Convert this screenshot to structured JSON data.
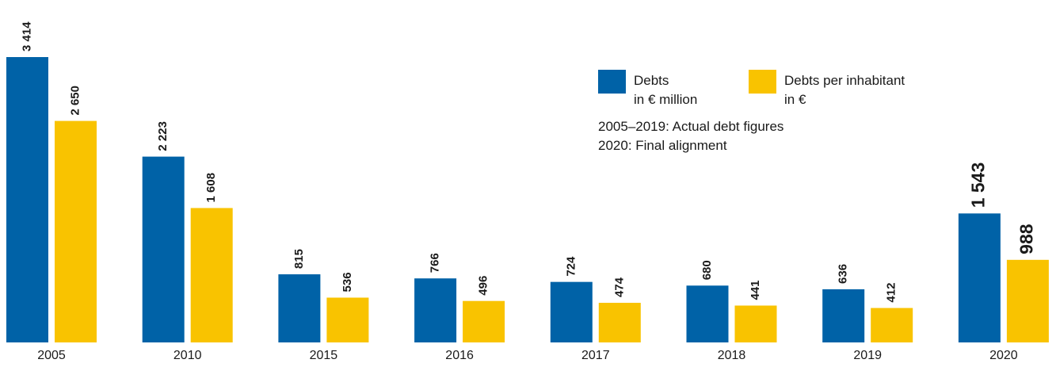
{
  "chart_data": {
    "type": "bar",
    "categories": [
      "2005",
      "2010",
      "2015",
      "2016",
      "2017",
      "2018",
      "2019",
      "2020"
    ],
    "series": [
      {
        "name": "Debts\nin € million",
        "color": "#0062a7",
        "values": [
          3414,
          2223,
          815,
          766,
          724,
          680,
          636,
          1543
        ],
        "value_labels": [
          "3 414",
          "2 223",
          "815",
          "766",
          "724",
          "680",
          "636",
          "1 543"
        ]
      },
      {
        "name": "Debts per inhabitant\nin €",
        "color": "#f9c300",
        "values": [
          2650,
          1608,
          536,
          496,
          474,
          441,
          412,
          988
        ],
        "value_labels": [
          "2 650",
          "1 608",
          "536",
          "496",
          "474",
          "441",
          "412",
          "988"
        ]
      }
    ],
    "annotations": [
      "2005–2019: Actual debt figures",
      "2020: Final alignment"
    ]
  }
}
